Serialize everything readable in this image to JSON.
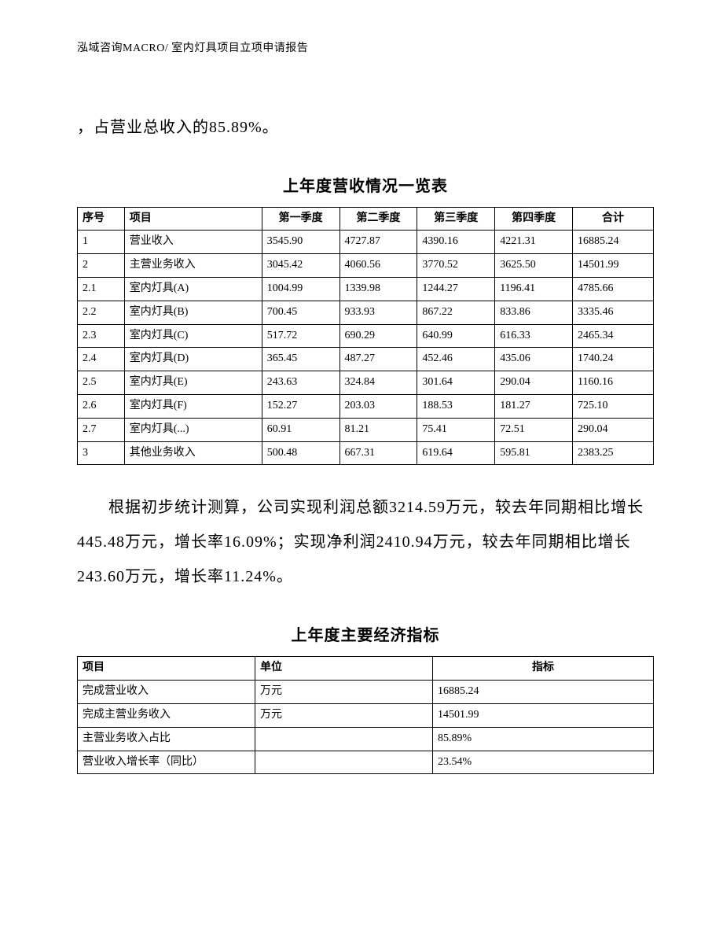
{
  "header": "泓域咨询MACRO/    室内灯具项目立项申请报告",
  "para1": "，占营业总收入的85.89%。",
  "table1": {
    "title": "上年度营收情况一览表",
    "columns": [
      "序号",
      "项目",
      "第一季度",
      "第二季度",
      "第三季度",
      "第四季度",
      "合计"
    ],
    "rows": [
      [
        "1",
        "营业收入",
        "3545.90",
        "4727.87",
        "4390.16",
        "4221.31",
        "16885.24"
      ],
      [
        "2",
        "主营业务收入",
        "3045.42",
        "4060.56",
        "3770.52",
        "3625.50",
        "14501.99"
      ],
      [
        "2.1",
        "室内灯具(A)",
        "1004.99",
        "1339.98",
        "1244.27",
        "1196.41",
        "4785.66"
      ],
      [
        "2.2",
        "室内灯具(B)",
        "700.45",
        "933.93",
        "867.22",
        "833.86",
        "3335.46"
      ],
      [
        "2.3",
        "室内灯具(C)",
        "517.72",
        "690.29",
        "640.99",
        "616.33",
        "2465.34"
      ],
      [
        "2.4",
        "室内灯具(D)",
        "365.45",
        "487.27",
        "452.46",
        "435.06",
        "1740.24"
      ],
      [
        "2.5",
        "室内灯具(E)",
        "243.63",
        "324.84",
        "301.64",
        "290.04",
        "1160.16"
      ],
      [
        "2.6",
        "室内灯具(F)",
        "152.27",
        "203.03",
        "188.53",
        "181.27",
        "725.10"
      ],
      [
        "2.7",
        "室内灯具(...)",
        "60.91",
        "81.21",
        "75.41",
        "72.51",
        "290.04"
      ],
      [
        "3",
        "其他业务收入",
        "500.48",
        "667.31",
        "619.64",
        "595.81",
        "2383.25"
      ]
    ]
  },
  "para2": "根据初步统计测算，公司实现利润总额3214.59万元，较去年同期相比增长445.48万元，增长率16.09%；实现净利润2410.94万元，较去年同期相比增长243.60万元，增长率11.24%。",
  "table2": {
    "title": "上年度主要经济指标",
    "columns": [
      "项目",
      "单位",
      "指标"
    ],
    "rows": [
      [
        "完成营业收入",
        "万元",
        "16885.24"
      ],
      [
        "完成主营业务收入",
        "万元",
        "14501.99"
      ],
      [
        "主营业务收入占比",
        "",
        "85.89%"
      ],
      [
        "营业收入增长率（同比）",
        "",
        "23.54%"
      ]
    ]
  }
}
